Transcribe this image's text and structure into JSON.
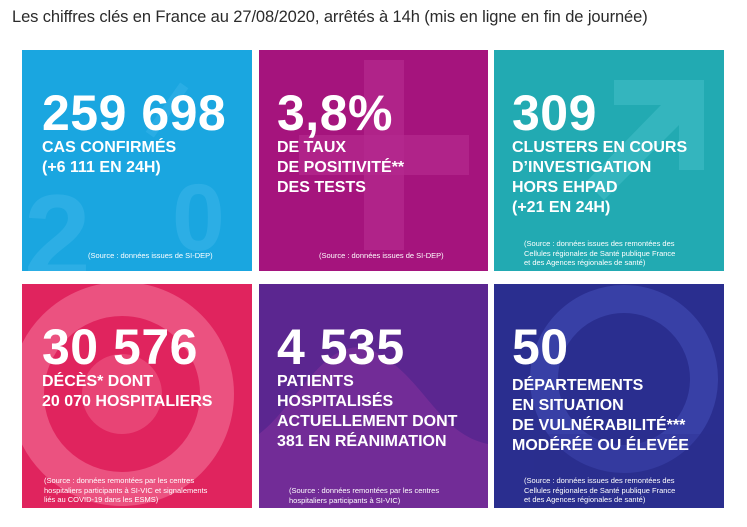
{
  "header": {
    "title": "Les chiffres clés en France au 27/08/2020, arrêtés à 14h (mis en ligne en fin de journée)"
  },
  "tiles": [
    {
      "value": "259 698",
      "lines": [
        "CAS CONFIRMÉS",
        "(+6 111 EN 24H)"
      ],
      "source": [
        "(Source : données issues de SI-DEP)"
      ],
      "color": "#1aa6e0"
    },
    {
      "value": "3,8%",
      "lines": [
        "DE TAUX",
        "DE POSITIVITÉ**",
        "DES TESTS"
      ],
      "source": [
        "(Source : données issues de SI-DEP)"
      ],
      "color": "#a5147d"
    },
    {
      "value": "309",
      "lines": [
        "CLUSTERS EN COURS",
        "D’INVESTIGATION",
        "HORS EHPAD",
        "(+21 EN 24H)"
      ],
      "source": [
        "(Source : données issues des remontées des",
        "Cellules régionales de Santé publique France",
        "et des Agences régionales de santé)"
      ],
      "color": "#22aab2"
    },
    {
      "value": "30 576",
      "lines": [
        "DÉCÈS* DONT",
        "20 070 HOSPITALIERS"
      ],
      "source": [
        "(Source : données remontées par les centres",
        "hospitaliers participants à SI-VIC et signalements",
        "liés au COVID-19 dans les ESMS)"
      ],
      "color": "#e0245e"
    },
    {
      "value": "4 535",
      "lines": [
        "PATIENTS",
        "HOSPITALISÉS",
        "ACTUELLEMENT DONT",
        "381 EN RÉANIMATION"
      ],
      "source": [
        "(Source : données remontées par les centres",
        "hospitaliers participants à SI-VIC)"
      ],
      "color": "#5b2690"
    },
    {
      "value": "50",
      "lines": [
        "DÉPARTEMENTS",
        "EN SITUATION",
        "DE VULNÉRABILITÉ***",
        "MODÉRÉE OU ÉLEVÉE"
      ],
      "source": [
        "(Source : données issues des remontées des",
        "Cellules régionales de Santé publique France",
        "et des Agences régionales de santé)"
      ],
      "color": "#2a2e8f"
    }
  ]
}
